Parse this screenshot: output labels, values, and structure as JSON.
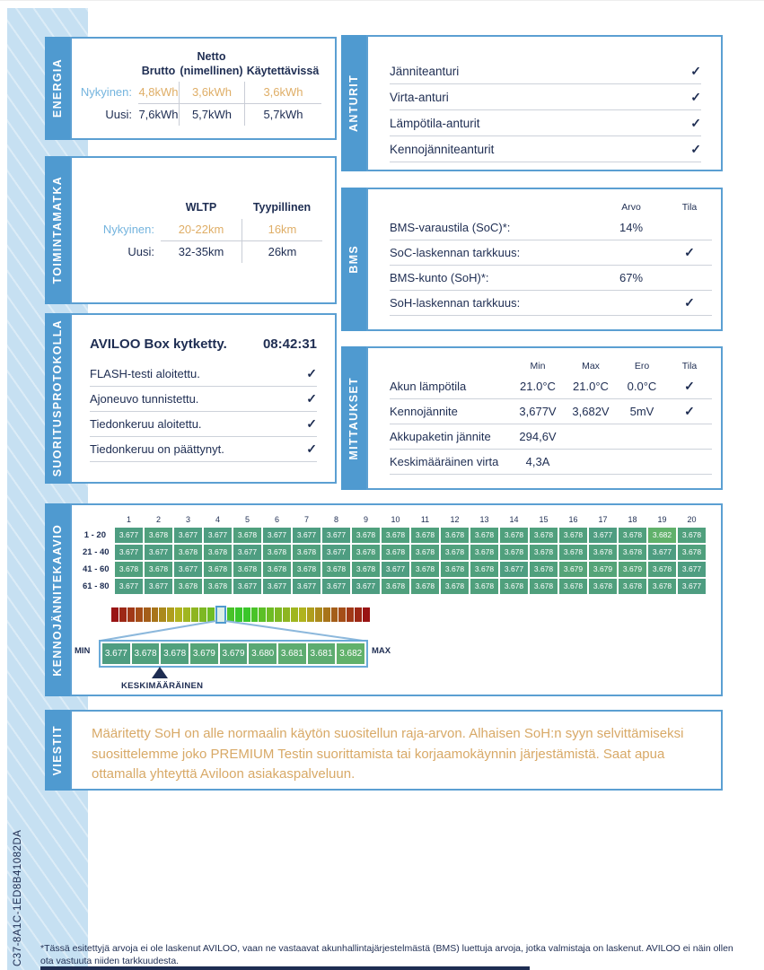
{
  "colors": {
    "accent_blue": "#4f9ad0",
    "card_border": "#5b9fd2",
    "panel_bg": "#c6e0f2",
    "dark_navy": "#1e2d52",
    "highlight_orange": "#dfae67",
    "highlight_blue": "#74b4de",
    "cell_green": "#4f9e7e"
  },
  "icons": {
    "check": "✓"
  },
  "energia": {
    "tab": "ENERGIA",
    "headers": [
      "Brutto",
      [
        "Netto",
        "(nimellinen)"
      ],
      "Käytettävissä"
    ],
    "rows": [
      {
        "label": "Nykyinen:",
        "values": [
          "4,8kWh",
          "3,6kWh",
          "3,6kWh"
        ],
        "highlight": true
      },
      {
        "label": "Uusi:",
        "values": [
          "7,6kWh",
          "5,7kWh",
          "5,7kWh"
        ],
        "highlight": false
      }
    ]
  },
  "toimintamatka": {
    "tab": "TOIMINTAMATKA",
    "headers": [
      "WLTP",
      "Tyypillinen"
    ],
    "rows": [
      {
        "label": "Nykyinen:",
        "values": [
          "20-22km",
          "16km"
        ],
        "highlight": true
      },
      {
        "label": "Uusi:",
        "values": [
          "32-35km",
          "26km"
        ],
        "highlight": false
      }
    ]
  },
  "suoritusprotokolla": {
    "tab": "SUORITUSPROTOKOLLA",
    "first_row": {
      "label": "AVILOO Box kytketty.",
      "time": "08:42:31"
    },
    "rows": [
      {
        "label": "FLASH-testi aloitettu.",
        "check": true
      },
      {
        "label": "Ajoneuvo tunnistettu.",
        "check": true
      },
      {
        "label": "Tiedonkeruu aloitettu.",
        "check": true
      },
      {
        "label": "Tiedonkeruu on päättynyt.",
        "check": true
      }
    ]
  },
  "anturit": {
    "tab": "ANTURIT",
    "rows": [
      {
        "label": "Jänniteanturi",
        "check": true
      },
      {
        "label": "Virta-anturi",
        "check": true
      },
      {
        "label": "Lämpötila-anturit",
        "check": true
      },
      {
        "label": "Kennojänniteanturit",
        "check": true
      }
    ]
  },
  "bms": {
    "tab": "BMS",
    "headers": {
      "value": "Arvo",
      "status": "Tila"
    },
    "rows": [
      {
        "label": "BMS-varaustila (SoC)*:",
        "value": "14%",
        "check": false
      },
      {
        "label": "SoC-laskennan tarkkuus:",
        "value": "",
        "check": true
      },
      {
        "label": "BMS-kunto (SoH)*:",
        "value": "67%",
        "check": false
      },
      {
        "label": "SoH-laskennan tarkkuus:",
        "value": "",
        "check": true
      }
    ]
  },
  "mittaukset": {
    "tab": "MITTAUKSET",
    "headers": [
      "Min",
      "Max",
      "Ero",
      "Tila"
    ],
    "rows": [
      {
        "label": "Akun lämpötila",
        "min": "21.0°C",
        "max": "21.0°C",
        "ero": "0.0°C",
        "check": true
      },
      {
        "label": "Kennojännite",
        "min": "3,677V",
        "max": "3,682V",
        "ero": "5mV",
        "check": true
      },
      {
        "label": "Akkupaketin jännite",
        "min": "294,6V",
        "max": "",
        "ero": "",
        "check": false
      },
      {
        "label": "Keskimääräinen virta",
        "min": "4,3A",
        "max": "",
        "ero": "",
        "check": false
      }
    ]
  },
  "kennojannitekaavio": {
    "tab": "KENNOJÄNNITEKAAVIO"
  },
  "chart_data": {
    "type": "heatmap",
    "title": "KENNOJÄNNITEKAAVIO",
    "unit": "V",
    "columns": [
      1,
      2,
      3,
      4,
      5,
      6,
      7,
      8,
      9,
      10,
      11,
      12,
      13,
      14,
      15,
      16,
      17,
      18,
      19,
      20
    ],
    "row_labels": [
      "1 - 20",
      "21 - 40",
      "41 - 60",
      "61 - 80"
    ],
    "values": [
      [
        "3.677",
        "3.678",
        "3.677",
        "3.677",
        "3.678",
        "3.677",
        "3.677",
        "3.677",
        "3.678",
        "3.678",
        "3.678",
        "3.678",
        "3.678",
        "3.678",
        "3.678",
        "3.678",
        "3.677",
        "3.678",
        "3.682",
        "3.678"
      ],
      [
        "3.677",
        "3.677",
        "3.678",
        "3.678",
        "3.677",
        "3.678",
        "3.678",
        "3.677",
        "3.678",
        "3.678",
        "3.678",
        "3.678",
        "3.678",
        "3.678",
        "3.678",
        "3.678",
        "3.678",
        "3.678",
        "3.677",
        "3.678"
      ],
      [
        "3.678",
        "3.678",
        "3.677",
        "3.678",
        "3.678",
        "3.678",
        "3.678",
        "3.678",
        "3.678",
        "3.677",
        "3.678",
        "3.678",
        "3.678",
        "3.677",
        "3.678",
        "3.679",
        "3.679",
        "3.679",
        "3.678",
        "3.677"
      ],
      [
        "3.677",
        "3.677",
        "3.678",
        "3.678",
        "3.677",
        "3.677",
        "3.677",
        "3.677",
        "3.677",
        "3.678",
        "3.678",
        "3.678",
        "3.678",
        "3.678",
        "3.678",
        "3.678",
        "3.678",
        "3.678",
        "3.678",
        "3.677"
      ]
    ],
    "value_colors": {
      "3.677": "#4e9d81",
      "3.678": "#50a07d",
      "3.679": "#55a478",
      "3.680": "#59a874",
      "3.681": "#5dac70",
      "3.682": "#61b16b"
    },
    "default_cell_color": "#4f9e7e",
    "scale": {
      "min_label": "MIN",
      "max_label": "MAX",
      "zoom_values": [
        "3.677",
        "3.678",
        "3.678",
        "3.679",
        "3.679",
        "3.680",
        "3.681",
        "3.681",
        "3.682"
      ],
      "average_label": "KESKIMÄÄRÄINEN",
      "average_position": 1.5,
      "bar_segments": 32,
      "bar_highlight_index": 13
    }
  },
  "viestit": {
    "tab": "VIESTIT",
    "message": "Määritetty SoH on alle normaalin käytön suositellun raja-arvon. Alhaisen SoH:n syyn selvittämiseksi suosittelemme joko PREMIUM Testin suorittamista tai korjaamokäynnin järjestämistä. Saat apua ottamalla yhteyttä Aviloon asiakaspalveluun."
  },
  "footer": {
    "code": "C37-8A1C-1ED8B41082DA",
    "footnote": "*Tässä esitettyjä arvoja ei ole laskenut AVILOO, vaan ne vastaavat akunhallintajärjestelmästä (BMS) luettuja arvoja, jotka valmistaja on laskenut. AVILOO ei näin ollen ota vastuuta niiden tarkkuudesta."
  }
}
